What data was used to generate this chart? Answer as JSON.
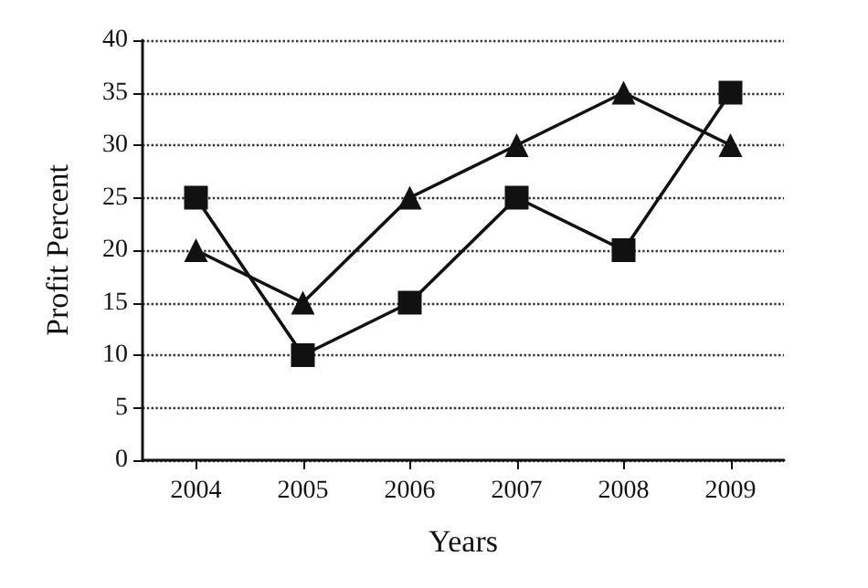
{
  "chart_data": {
    "type": "line",
    "xlabel": "Years",
    "ylabel": "Profit Percent",
    "categories": [
      "2004",
      "2005",
      "2006",
      "2007",
      "2008",
      "2009"
    ],
    "series": [
      {
        "color": "#111111",
        "marker": "square",
        "values": [
          25,
          10,
          15,
          25,
          20,
          35
        ]
      },
      {
        "color": "#111111",
        "marker": "triangle",
        "values": [
          20,
          15,
          25,
          30,
          35,
          30
        ]
      }
    ],
    "ylim": [
      0,
      40
    ],
    "yticks": [
      0,
      5,
      10,
      15,
      20,
      25,
      30,
      35,
      40
    ],
    "grid": "y",
    "line_style": "solid"
  }
}
